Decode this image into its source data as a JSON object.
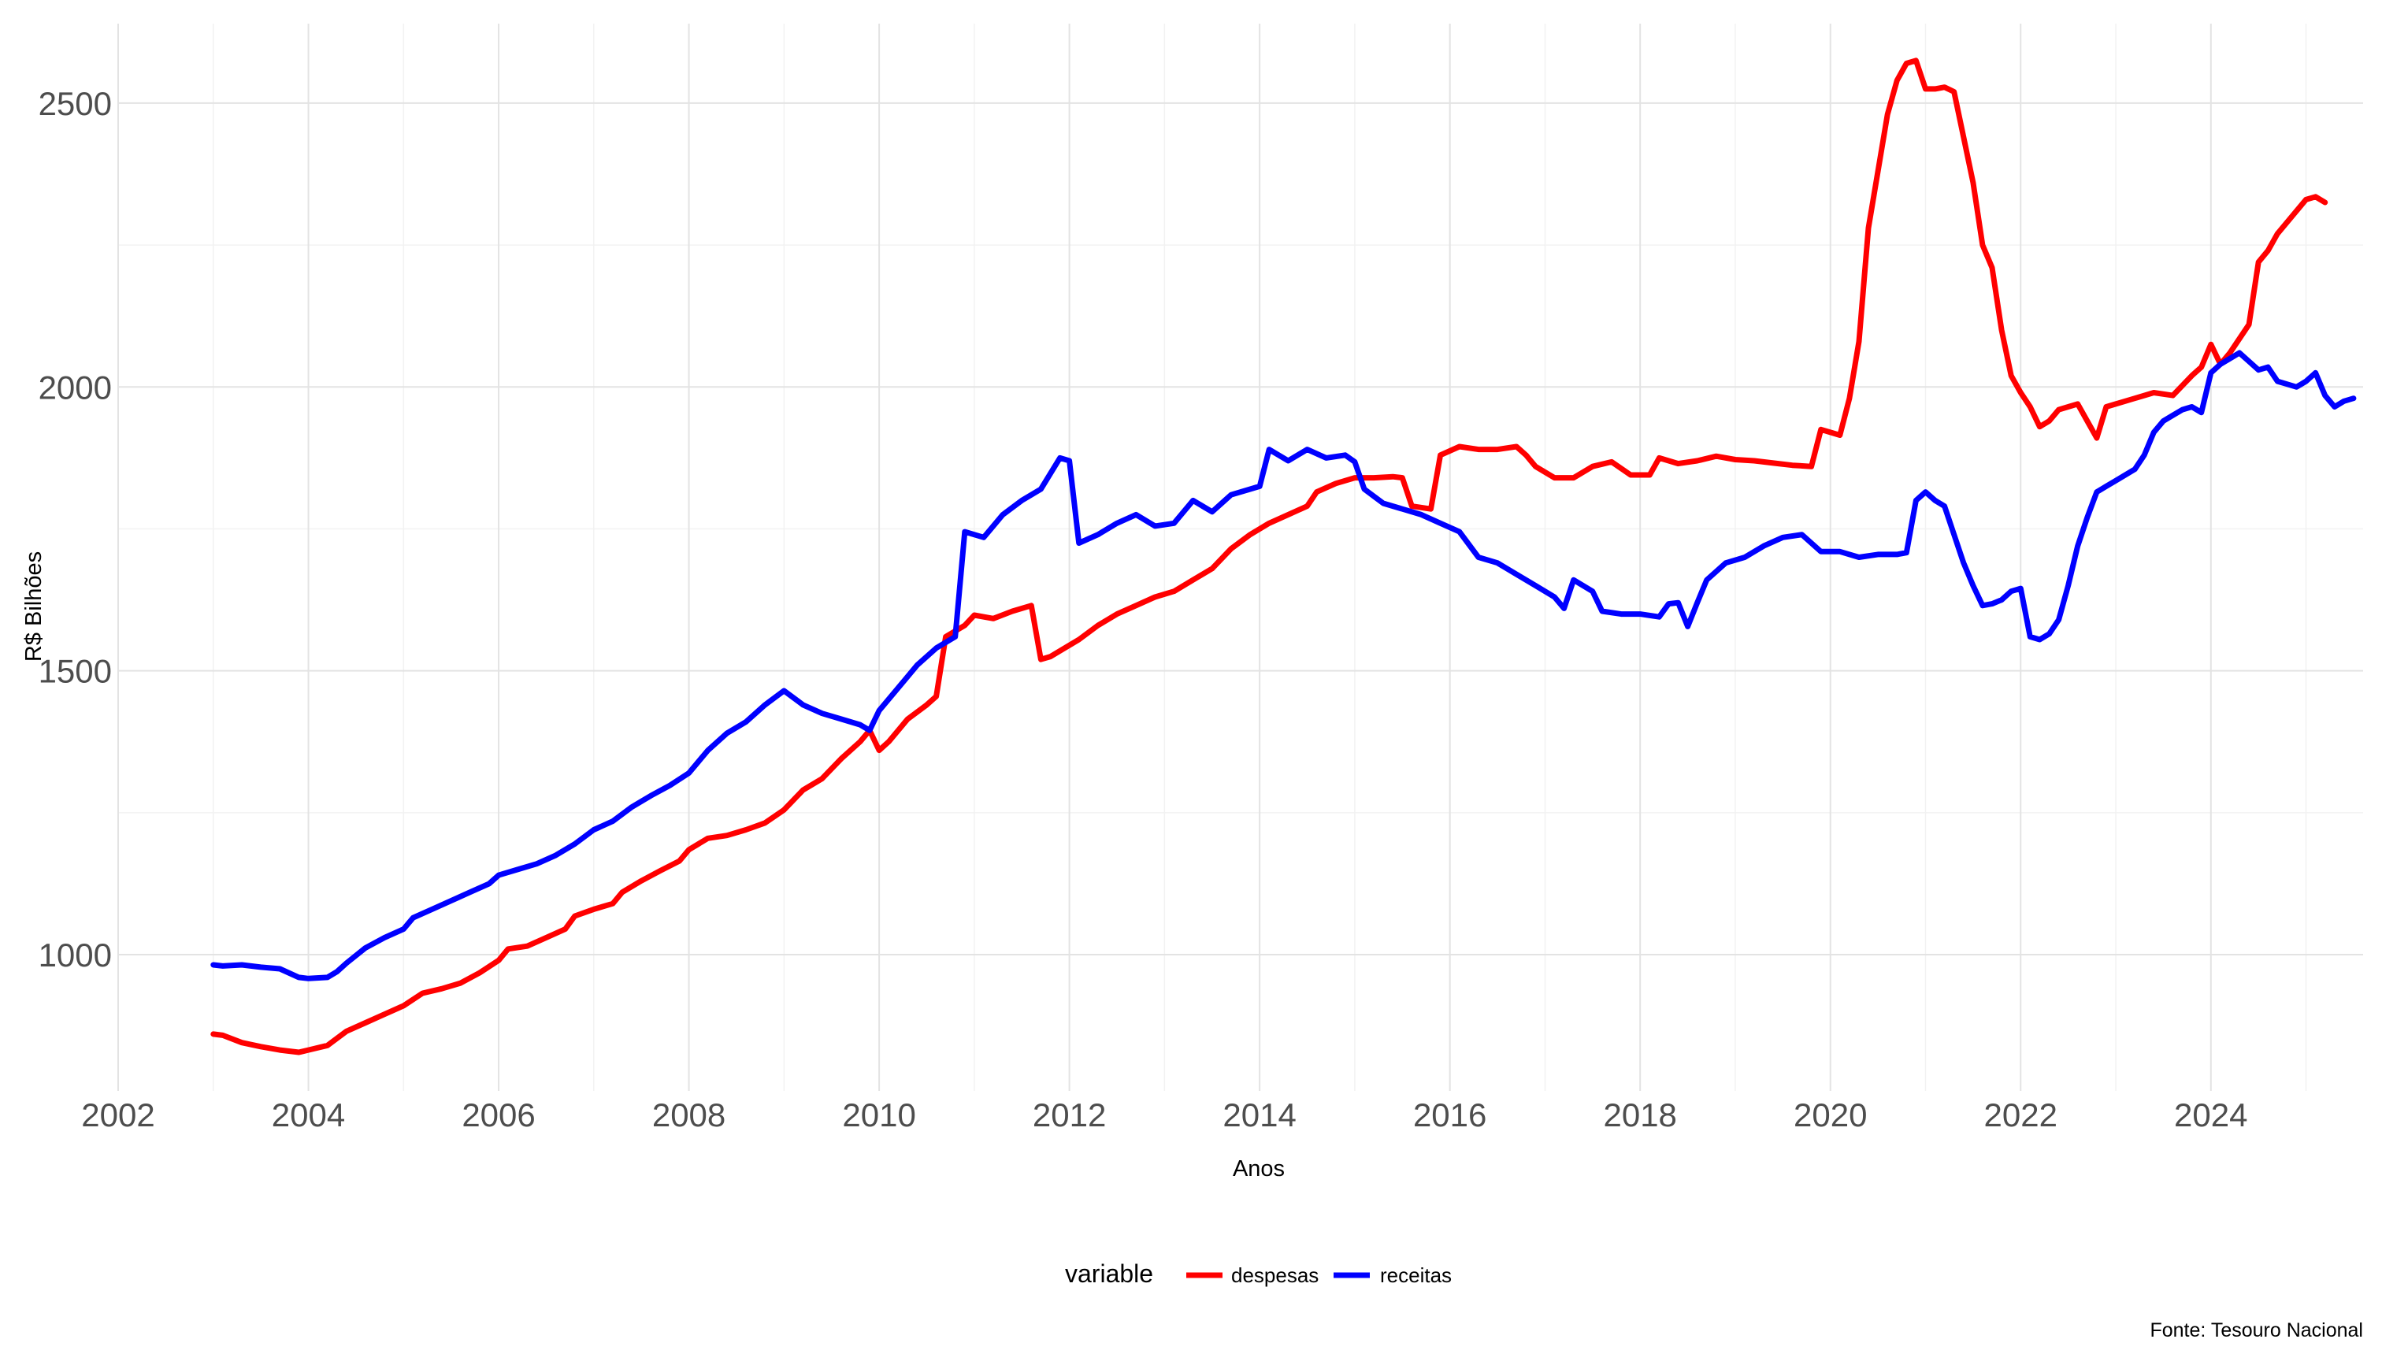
{
  "chart_data": {
    "type": "line",
    "title": "",
    "xlabel": "Anos",
    "ylabel": "R$ Bilhões",
    "caption": "Fonte: Tesouro Nacional",
    "legend_title": "variable",
    "legend_position": "bottom",
    "grid": true,
    "xlim": [
      2002,
      2025.6
    ],
    "ylim": [
      760,
      2640
    ],
    "x_ticks": [
      2002,
      2004,
      2006,
      2008,
      2010,
      2012,
      2014,
      2016,
      2018,
      2020,
      2022,
      2024
    ],
    "y_ticks": [
      1000,
      1500,
      2000,
      2500
    ],
    "x_tick_labels": [
      "2002",
      "2004",
      "2006",
      "2008",
      "2010",
      "2012",
      "2014",
      "2016",
      "2018",
      "2020",
      "2022",
      "2024"
    ],
    "y_tick_labels": [
      "1000",
      "1500",
      "2000",
      "2500"
    ],
    "series": [
      {
        "name": "despesas",
        "color": "#ff0000",
        "points": [
          [
            2003.0,
            860
          ],
          [
            2003.1,
            858
          ],
          [
            2003.3,
            845
          ],
          [
            2003.5,
            838
          ],
          [
            2003.7,
            832
          ],
          [
            2003.9,
            828
          ],
          [
            2004.0,
            832
          ],
          [
            2004.2,
            840
          ],
          [
            2004.4,
            865
          ],
          [
            2004.6,
            880
          ],
          [
            2004.8,
            895
          ],
          [
            2005.0,
            910
          ],
          [
            2005.2,
            932
          ],
          [
            2005.4,
            940
          ],
          [
            2005.6,
            950
          ],
          [
            2005.8,
            968
          ],
          [
            2006.0,
            990
          ],
          [
            2006.1,
            1010
          ],
          [
            2006.3,
            1015
          ],
          [
            2006.5,
            1030
          ],
          [
            2006.7,
            1045
          ],
          [
            2006.8,
            1068
          ],
          [
            2007.0,
            1080
          ],
          [
            2007.2,
            1090
          ],
          [
            2007.3,
            1110
          ],
          [
            2007.5,
            1130
          ],
          [
            2007.7,
            1148
          ],
          [
            2007.9,
            1165
          ],
          [
            2008.0,
            1185
          ],
          [
            2008.2,
            1205
          ],
          [
            2008.4,
            1210
          ],
          [
            2008.6,
            1220
          ],
          [
            2008.8,
            1232
          ],
          [
            2009.0,
            1255
          ],
          [
            2009.2,
            1290
          ],
          [
            2009.4,
            1310
          ],
          [
            2009.6,
            1345
          ],
          [
            2009.8,
            1375
          ],
          [
            2009.9,
            1395
          ],
          [
            2010.0,
            1360
          ],
          [
            2010.1,
            1375
          ],
          [
            2010.3,
            1415
          ],
          [
            2010.5,
            1440
          ],
          [
            2010.6,
            1455
          ],
          [
            2010.7,
            1560
          ],
          [
            2010.9,
            1580
          ],
          [
            2011.0,
            1598
          ],
          [
            2011.2,
            1592
          ],
          [
            2011.4,
            1605
          ],
          [
            2011.6,
            1615
          ],
          [
            2011.7,
            1520
          ],
          [
            2011.8,
            1525
          ],
          [
            2011.9,
            1535
          ],
          [
            2012.1,
            1555
          ],
          [
            2012.3,
            1580
          ],
          [
            2012.5,
            1600
          ],
          [
            2012.7,
            1615
          ],
          [
            2012.9,
            1630
          ],
          [
            2013.1,
            1640
          ],
          [
            2013.3,
            1660
          ],
          [
            2013.5,
            1680
          ],
          [
            2013.7,
            1715
          ],
          [
            2013.9,
            1740
          ],
          [
            2014.1,
            1760
          ],
          [
            2014.3,
            1775
          ],
          [
            2014.5,
            1790
          ],
          [
            2014.6,
            1815
          ],
          [
            2014.8,
            1830
          ],
          [
            2015.0,
            1840
          ],
          [
            2015.2,
            1840
          ],
          [
            2015.4,
            1842
          ],
          [
            2015.5,
            1840
          ],
          [
            2015.6,
            1790
          ],
          [
            2015.8,
            1785
          ],
          [
            2015.9,
            1880
          ],
          [
            2016.1,
            1895
          ],
          [
            2016.3,
            1890
          ],
          [
            2016.5,
            1890
          ],
          [
            2016.7,
            1895
          ],
          [
            2016.8,
            1880
          ],
          [
            2016.9,
            1860
          ],
          [
            2017.1,
            1840
          ],
          [
            2017.3,
            1840
          ],
          [
            2017.5,
            1860
          ],
          [
            2017.7,
            1868
          ],
          [
            2017.9,
            1845
          ],
          [
            2018.1,
            1845
          ],
          [
            2018.2,
            1875
          ],
          [
            2018.4,
            1865
          ],
          [
            2018.6,
            1870
          ],
          [
            2018.8,
            1878
          ],
          [
            2019.0,
            1872
          ],
          [
            2019.2,
            1870
          ],
          [
            2019.4,
            1866
          ],
          [
            2019.6,
            1862
          ],
          [
            2019.8,
            1860
          ],
          [
            2019.9,
            1925
          ],
          [
            2020.0,
            1920
          ],
          [
            2020.1,
            1915
          ],
          [
            2020.2,
            1980
          ],
          [
            2020.3,
            2080
          ],
          [
            2020.4,
            2280
          ],
          [
            2020.5,
            2380
          ],
          [
            2020.6,
            2480
          ],
          [
            2020.7,
            2540
          ],
          [
            2020.8,
            2570
          ],
          [
            2020.9,
            2575
          ],
          [
            2021.0,
            2525
          ],
          [
            2021.1,
            2525
          ],
          [
            2021.2,
            2528
          ],
          [
            2021.3,
            2520
          ],
          [
            2021.4,
            2440
          ],
          [
            2021.5,
            2360
          ],
          [
            2021.6,
            2250
          ],
          [
            2021.7,
            2210
          ],
          [
            2021.8,
            2100
          ],
          [
            2021.9,
            2020
          ],
          [
            2022.0,
            1990
          ],
          [
            2022.1,
            1965
          ],
          [
            2022.2,
            1930
          ],
          [
            2022.3,
            1940
          ],
          [
            2022.4,
            1960
          ],
          [
            2022.5,
            1965
          ],
          [
            2022.6,
            1970
          ],
          [
            2022.7,
            1940
          ],
          [
            2022.8,
            1910
          ],
          [
            2022.9,
            1965
          ],
          [
            2023.0,
            1970
          ],
          [
            2023.2,
            1980
          ],
          [
            2023.4,
            1990
          ],
          [
            2023.6,
            1985
          ],
          [
            2023.8,
            2020
          ],
          [
            2023.9,
            2035
          ],
          [
            2024.0,
            2075
          ],
          [
            2024.1,
            2040
          ],
          [
            2024.2,
            2060
          ],
          [
            2024.3,
            2085
          ],
          [
            2024.4,
            2110
          ],
          [
            2024.5,
            2220
          ],
          [
            2024.6,
            2240
          ],
          [
            2024.7,
            2270
          ],
          [
            2024.8,
            2290
          ],
          [
            2024.9,
            2310
          ],
          [
            2025.0,
            2330
          ],
          [
            2025.1,
            2335
          ],
          [
            2025.2,
            2325
          ]
        ]
      },
      {
        "name": "receitas",
        "color": "#0000ff",
        "points": [
          [
            2003.0,
            982
          ],
          [
            2003.1,
            980
          ],
          [
            2003.3,
            982
          ],
          [
            2003.5,
            978
          ],
          [
            2003.7,
            975
          ],
          [
            2003.9,
            960
          ],
          [
            2004.0,
            958
          ],
          [
            2004.2,
            960
          ],
          [
            2004.3,
            970
          ],
          [
            2004.4,
            985
          ],
          [
            2004.6,
            1012
          ],
          [
            2004.8,
            1030
          ],
          [
            2005.0,
            1045
          ],
          [
            2005.1,
            1065
          ],
          [
            2005.3,
            1080
          ],
          [
            2005.5,
            1095
          ],
          [
            2005.7,
            1110
          ],
          [
            2005.9,
            1125
          ],
          [
            2006.0,
            1140
          ],
          [
            2006.2,
            1150
          ],
          [
            2006.4,
            1160
          ],
          [
            2006.6,
            1175
          ],
          [
            2006.8,
            1195
          ],
          [
            2007.0,
            1220
          ],
          [
            2007.2,
            1235
          ],
          [
            2007.4,
            1260
          ],
          [
            2007.6,
            1280
          ],
          [
            2007.8,
            1298
          ],
          [
            2008.0,
            1320
          ],
          [
            2008.2,
            1360
          ],
          [
            2008.4,
            1390
          ],
          [
            2008.6,
            1410
          ],
          [
            2008.8,
            1440
          ],
          [
            2009.0,
            1465
          ],
          [
            2009.2,
            1440
          ],
          [
            2009.4,
            1425
          ],
          [
            2009.6,
            1415
          ],
          [
            2009.8,
            1405
          ],
          [
            2009.9,
            1395
          ],
          [
            2010.0,
            1430
          ],
          [
            2010.2,
            1470
          ],
          [
            2010.4,
            1510
          ],
          [
            2010.6,
            1540
          ],
          [
            2010.8,
            1560
          ],
          [
            2010.9,
            1745
          ],
          [
            2011.1,
            1735
          ],
          [
            2011.3,
            1775
          ],
          [
            2011.5,
            1800
          ],
          [
            2011.7,
            1820
          ],
          [
            2011.9,
            1875
          ],
          [
            2012.0,
            1870
          ],
          [
            2012.1,
            1725
          ],
          [
            2012.3,
            1740
          ],
          [
            2012.5,
            1760
          ],
          [
            2012.7,
            1775
          ],
          [
            2012.9,
            1755
          ],
          [
            2013.1,
            1760
          ],
          [
            2013.3,
            1800
          ],
          [
            2013.5,
            1780
          ],
          [
            2013.7,
            1810
          ],
          [
            2013.9,
            1820
          ],
          [
            2014.0,
            1825
          ],
          [
            2014.1,
            1890
          ],
          [
            2014.3,
            1870
          ],
          [
            2014.5,
            1890
          ],
          [
            2014.7,
            1875
          ],
          [
            2014.9,
            1880
          ],
          [
            2015.0,
            1868
          ],
          [
            2015.1,
            1820
          ],
          [
            2015.3,
            1795
          ],
          [
            2015.5,
            1785
          ],
          [
            2015.7,
            1775
          ],
          [
            2015.9,
            1760
          ],
          [
            2016.1,
            1745
          ],
          [
            2016.3,
            1700
          ],
          [
            2016.5,
            1690
          ],
          [
            2016.7,
            1670
          ],
          [
            2016.9,
            1650
          ],
          [
            2017.1,
            1630
          ],
          [
            2017.2,
            1610
          ],
          [
            2017.3,
            1660
          ],
          [
            2017.5,
            1640
          ],
          [
            2017.6,
            1605
          ],
          [
            2017.8,
            1600
          ],
          [
            2018.0,
            1600
          ],
          [
            2018.2,
            1595
          ],
          [
            2018.3,
            1618
          ],
          [
            2018.4,
            1620
          ],
          [
            2018.5,
            1578
          ],
          [
            2018.6,
            1620
          ],
          [
            2018.7,
            1660
          ],
          [
            2018.9,
            1690
          ],
          [
            2019.1,
            1700
          ],
          [
            2019.3,
            1720
          ],
          [
            2019.5,
            1735
          ],
          [
            2019.7,
            1740
          ],
          [
            2019.9,
            1710
          ],
          [
            2020.1,
            1710
          ],
          [
            2020.3,
            1700
          ],
          [
            2020.5,
            1705
          ],
          [
            2020.7,
            1705
          ],
          [
            2020.8,
            1708
          ],
          [
            2020.9,
            1800
          ],
          [
            2021.0,
            1815
          ],
          [
            2021.1,
            1800
          ],
          [
            2021.2,
            1790
          ],
          [
            2021.3,
            1740
          ],
          [
            2021.4,
            1690
          ],
          [
            2021.5,
            1650
          ],
          [
            2021.6,
            1615
          ],
          [
            2021.7,
            1618
          ],
          [
            2021.8,
            1625
          ],
          [
            2021.9,
            1640
          ],
          [
            2022.0,
            1645
          ],
          [
            2022.1,
            1560
          ],
          [
            2022.2,
            1555
          ],
          [
            2022.3,
            1565
          ],
          [
            2022.4,
            1590
          ],
          [
            2022.5,
            1650
          ],
          [
            2022.6,
            1720
          ],
          [
            2022.7,
            1770
          ],
          [
            2022.8,
            1815
          ],
          [
            2022.9,
            1825
          ],
          [
            2023.0,
            1835
          ],
          [
            2023.1,
            1845
          ],
          [
            2023.2,
            1855
          ],
          [
            2023.3,
            1880
          ],
          [
            2023.4,
            1920
          ],
          [
            2023.5,
            1940
          ],
          [
            2023.6,
            1950
          ],
          [
            2023.7,
            1960
          ],
          [
            2023.8,
            1965
          ],
          [
            2023.9,
            1955
          ],
          [
            2024.0,
            2025
          ],
          [
            2024.1,
            2040
          ],
          [
            2024.2,
            2050
          ],
          [
            2024.3,
            2060
          ],
          [
            2024.4,
            2045
          ],
          [
            2024.5,
            2030
          ],
          [
            2024.6,
            2035
          ],
          [
            2024.7,
            2010
          ],
          [
            2024.8,
            2005
          ],
          [
            2024.9,
            2000
          ],
          [
            2025.0,
            2010
          ],
          [
            2025.1,
            2025
          ],
          [
            2025.2,
            1985
          ],
          [
            2025.3,
            1965
          ],
          [
            2025.4,
            1975
          ],
          [
            2025.5,
            1980
          ]
        ]
      }
    ]
  }
}
